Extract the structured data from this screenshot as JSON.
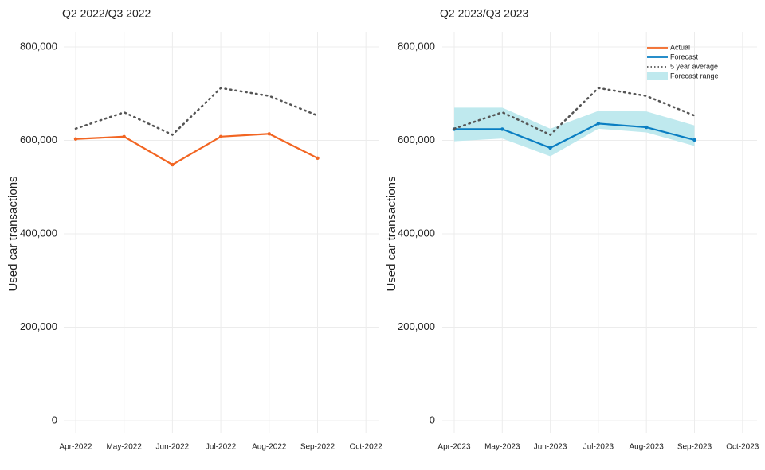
{
  "chart_data": [
    {
      "type": "line",
      "title": "Q2 2022/Q3 2022",
      "y_label": "Used car transactions",
      "categories": [
        "Apr-2022",
        "May-2022",
        "Jun-2022",
        "Jul-2022",
        "Aug-2022",
        "Sep-2022",
        "Oct-2022"
      ],
      "ylim": [
        0,
        800000
      ],
      "yticks": [
        {
          "value": 0,
          "label": "0"
        },
        {
          "value": 200000,
          "label": "200,000"
        },
        {
          "value": 400000,
          "label": "400,000"
        },
        {
          "value": 600000,
          "label": "600,000"
        },
        {
          "value": 800000,
          "label": "800,000"
        }
      ],
      "grid": true,
      "series": [
        {
          "name": "Actual",
          "color": "#f26522",
          "style": "solid",
          "values": [
            603000,
            608000,
            548000,
            608000,
            614000,
            562000,
            null
          ]
        },
        {
          "name": "5 year average",
          "color": "#555555",
          "style": "dotted",
          "values": [
            625000,
            660000,
            612000,
            712000,
            695000,
            653000,
            null
          ]
        }
      ]
    },
    {
      "type": "line",
      "title": "Q2 2023/Q3 2023",
      "y_label": "Used car transactions",
      "categories": [
        "Apr-2023",
        "May-2023",
        "Jun-2023",
        "Jul-2023",
        "Aug-2023",
        "Sep-2023",
        "Oct-2023"
      ],
      "ylim": [
        0,
        800000
      ],
      "yticks": [
        {
          "value": 0,
          "label": "0"
        },
        {
          "value": 200000,
          "label": "200,000"
        },
        {
          "value": 400000,
          "label": "400,000"
        },
        {
          "value": 600000,
          "label": "600,000"
        },
        {
          "value": 800000,
          "label": "800,000"
        }
      ],
      "grid": true,
      "legend": "top-right",
      "series": [
        {
          "name": "Actual",
          "color": "#f26522",
          "style": "solid",
          "values": [
            null,
            null,
            null,
            null,
            null,
            null,
            null
          ]
        },
        {
          "name": "Forecast",
          "color": "#0a7ec2",
          "style": "solid",
          "values": [
            624000,
            624000,
            584000,
            636000,
            628000,
            601000,
            null
          ]
        },
        {
          "name": "5 year average",
          "color": "#555555",
          "style": "dotted",
          "values": [
            625000,
            660000,
            612000,
            712000,
            695000,
            653000,
            null
          ]
        },
        {
          "name": "Forecast range",
          "color": "#bfe9ee",
          "style": "band",
          "lower": [
            598000,
            604000,
            566000,
            625000,
            617000,
            588000,
            null
          ],
          "upper": [
            670000,
            670000,
            625000,
            663000,
            662000,
            632000,
            null
          ]
        }
      ]
    }
  ]
}
